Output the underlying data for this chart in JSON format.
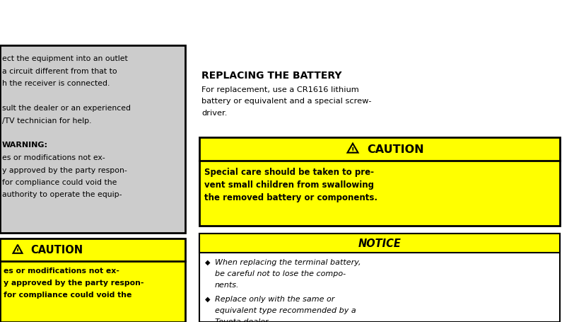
{
  "bg_color": "#ffffff",
  "left_panel_bg": "#cccccc",
  "yellow_color": "#ffff00",
  "black": "#000000",
  "white": "#ffffff",
  "left_text_lines": [
    "ect the equipment into an outlet",
    "a circuit different from that to",
    "h the receiver is connected.",
    "",
    "sult the dealer or an experienced",
    "/TV technician for help.",
    "",
    "WARNING:",
    "es or modifications not ex-",
    "y approved by the party respon-",
    "for compliance could void the",
    "authority to operate the equip-"
  ],
  "left_caution_header": "CAUTION",
  "left_caution_lines": [
    "es or modifications not ex-",
    "y approved by the party respon-",
    "for compliance could void the"
  ],
  "heading": "REPLACING THE BATTERY",
  "intro_lines": [
    "For replacement, use a CR1616 lithium",
    "battery or equivalent and a special screw-",
    "driver."
  ],
  "caution_header": "CAUTION",
  "caution_body_lines": [
    "Special care should be taken to pre-",
    "vent small children from swallowing",
    "the removed battery or components."
  ],
  "notice_header": "NOTICE",
  "notice_bullet1": [
    "When replacing the terminal battery,",
    "be careful not to lose the compo-",
    "nents."
  ],
  "notice_bullet2": [
    "Replace only with the same or",
    "equivalent type recommended by a",
    "Toyota dealer."
  ]
}
